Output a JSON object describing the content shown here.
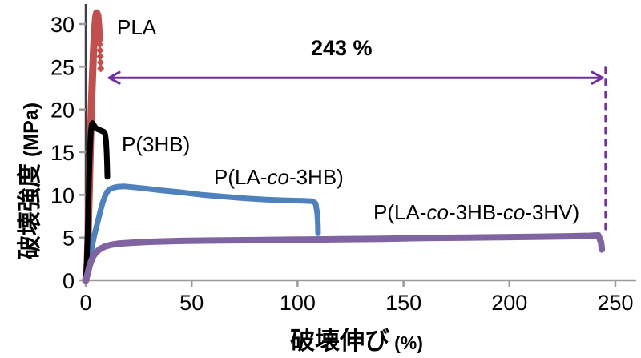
{
  "chart_data": {
    "type": "line",
    "title": "",
    "xlabel": "破壊伸び",
    "xlabel_unit": "(%)",
    "ylabel": "破壊強度",
    "ylabel_unit": "(MPa)",
    "xlim": [
      0,
      260
    ],
    "ylim": [
      0,
      32
    ],
    "x_ticks": [
      0,
      50,
      100,
      150,
      200,
      250
    ],
    "y_ticks": [
      0,
      5,
      10,
      15,
      20,
      25,
      30
    ],
    "grid": false,
    "legend_position": "inline-labels",
    "axis_color_x": "#9a9a9a",
    "axis_color_y": "#404040",
    "annotation": {
      "label": "243 %",
      "arrow_color": "#7030A0",
      "arrow_x_start_pct": 11,
      "arrow_x_end_pct": 244,
      "arrow_y_mpa": 23.7,
      "dashed_line_x_pct": 245.5,
      "dashed_line_top_mpa": 25.0,
      "dashed_line_bottom_mpa": 5.8
    },
    "series": [
      {
        "name": "PLA",
        "color": "#C0504D",
        "stroke_width": 9,
        "points": [
          [
            0,
            0
          ],
          [
            0.7,
            2
          ],
          [
            1.2,
            6
          ],
          [
            1.7,
            11
          ],
          [
            2.2,
            16
          ],
          [
            2.7,
            20.5
          ],
          [
            3.2,
            24
          ],
          [
            3.7,
            27
          ],
          [
            4.2,
            29.3
          ],
          [
            4.7,
            30.8
          ],
          [
            5.2,
            31.3
          ],
          [
            5.7,
            31.0
          ],
          [
            6.1,
            29.8
          ],
          [
            6.4,
            28.2
          ]
        ],
        "scatter_tail": [
          [
            6.6,
            27.6
          ],
          [
            6.75,
            26.9
          ],
          [
            6.85,
            26.2
          ],
          [
            6.95,
            25.5
          ],
          [
            7.1,
            24.8
          ]
        ]
      },
      {
        "name": "P(LA-co-3HB)",
        "color": "#4F81BD",
        "stroke_width": 7,
        "points": [
          [
            0,
            0
          ],
          [
            1,
            1.2
          ],
          [
            2,
            2.6
          ],
          [
            3,
            4.0
          ],
          [
            4,
            5.2
          ],
          [
            5,
            6.2
          ],
          [
            6,
            7.2
          ],
          [
            7,
            8.2
          ],
          [
            8,
            9.1
          ],
          [
            9,
            9.8
          ],
          [
            10,
            10.3
          ],
          [
            11,
            10.6
          ],
          [
            12.5,
            10.8
          ],
          [
            15,
            10.95
          ],
          [
            18,
            11.0
          ],
          [
            22,
            10.9
          ],
          [
            28,
            10.75
          ],
          [
            35,
            10.55
          ],
          [
            45,
            10.3
          ],
          [
            55,
            10.0
          ],
          [
            65,
            9.8
          ],
          [
            75,
            9.6
          ],
          [
            85,
            9.45
          ],
          [
            95,
            9.35
          ],
          [
            103,
            9.3
          ],
          [
            107,
            9.25
          ],
          [
            108.5,
            9.0
          ],
          [
            109.3,
            7.8
          ],
          [
            109.6,
            6.4
          ],
          [
            109.7,
            5.5
          ]
        ],
        "scatter_tail": []
      },
      {
        "name": "P(3HB)",
        "color": "#000000",
        "stroke_width": 7,
        "points": [
          [
            0,
            0
          ],
          [
            0.4,
            1.5
          ],
          [
            0.8,
            4.5
          ],
          [
            1.2,
            8.5
          ],
          [
            1.6,
            12.5
          ],
          [
            2.0,
            15.5
          ],
          [
            2.4,
            17.4
          ],
          [
            2.8,
            18.2
          ],
          [
            3.2,
            18.4
          ],
          [
            3.8,
            18.2
          ],
          [
            4.5,
            17.9
          ],
          [
            5.5,
            17.7
          ],
          [
            6.5,
            17.6
          ],
          [
            7.5,
            17.5
          ],
          [
            8.5,
            17.4
          ],
          [
            9.2,
            17.1
          ],
          [
            9.6,
            16.3
          ],
          [
            9.9,
            14.8
          ],
          [
            10.1,
            13.4
          ],
          [
            10.2,
            12.1
          ]
        ],
        "scatter_tail": []
      },
      {
        "name": "P(LA-co-3HB-co-3HV)",
        "color": "#8064A2",
        "stroke_width": 8,
        "points": [
          [
            0,
            0
          ],
          [
            0.8,
            0.7
          ],
          [
            1.6,
            1.5
          ],
          [
            2.5,
            2.2
          ],
          [
            3.5,
            2.8
          ],
          [
            5,
            3.3
          ],
          [
            7,
            3.7
          ],
          [
            9,
            3.95
          ],
          [
            12,
            4.15
          ],
          [
            16,
            4.3
          ],
          [
            22,
            4.4
          ],
          [
            30,
            4.5
          ],
          [
            45,
            4.6
          ],
          [
            60,
            4.65
          ],
          [
            80,
            4.7
          ],
          [
            100,
            4.75
          ],
          [
            120,
            4.8
          ],
          [
            140,
            4.85
          ],
          [
            160,
            4.95
          ],
          [
            180,
            5.0
          ],
          [
            200,
            5.05
          ],
          [
            215,
            5.1
          ],
          [
            228,
            5.15
          ],
          [
            238,
            5.2
          ],
          [
            242,
            5.25
          ],
          [
            243.3,
            4.4
          ],
          [
            243.6,
            3.6
          ]
        ],
        "scatter_tail": []
      }
    ]
  }
}
